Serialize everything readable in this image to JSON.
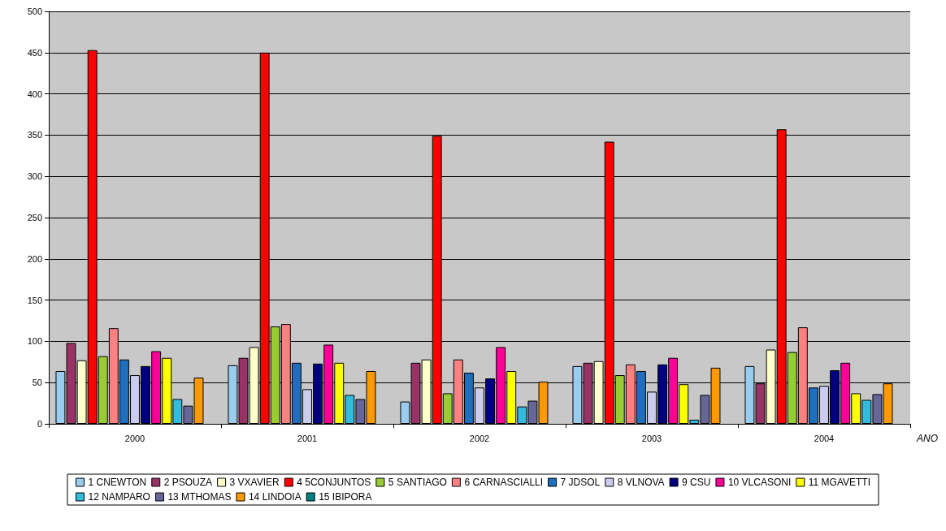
{
  "chart_data": {
    "type": "bar",
    "xlabel": "ANO",
    "categories": [
      "2000",
      "2001",
      "2002",
      "2003",
      "2004"
    ],
    "ylim": [
      0,
      500
    ],
    "yticks": [
      0,
      50,
      100,
      150,
      200,
      250,
      300,
      350,
      400,
      450,
      500
    ],
    "grid": "y",
    "legend": "bottom",
    "series": [
      {
        "name": "1 CNEWTON",
        "color": "#99ccee",
        "values": [
          64,
          71,
          27,
          70,
          70
        ]
      },
      {
        "name": "2 PSOUZA",
        "color": "#993366",
        "values": [
          98,
          80,
          74,
          74,
          49
        ]
      },
      {
        "name": "3 VXAVIER",
        "color": "#ffffcc",
        "values": [
          77,
          93,
          78,
          76,
          90
        ]
      },
      {
        "name": "4 5CONJUNTOS",
        "color": "#ff0000",
        "values": [
          453,
          450,
          349,
          342,
          357
        ]
      },
      {
        "name": "5 SANTIAGO",
        "color": "#99cc33",
        "values": [
          82,
          118,
          37,
          59,
          87
        ]
      },
      {
        "name": "6 CARNASCIALLI",
        "color": "#ff8080",
        "values": [
          116,
          121,
          78,
          72,
          117
        ]
      },
      {
        "name": "7 JDSOL",
        "color": "#1f6fbf",
        "values": [
          78,
          74,
          62,
          64,
          44
        ]
      },
      {
        "name": "8 VLNOVA",
        "color": "#ccccee",
        "values": [
          59,
          42,
          44,
          39,
          46
        ]
      },
      {
        "name": "9 CSU",
        "color": "#000080",
        "values": [
          70,
          73,
          55,
          72,
          65
        ]
      },
      {
        "name": "10 VLCASONI",
        "color": "#ff0099",
        "values": [
          88,
          96,
          93,
          80,
          74
        ]
      },
      {
        "name": "11 MGAVETTI",
        "color": "#ffff00",
        "values": [
          80,
          74,
          64,
          48,
          37
        ]
      },
      {
        "name": "12 NAMPARO",
        "color": "#33bbdd",
        "values": [
          30,
          35,
          21,
          5,
          29
        ]
      },
      {
        "name": "13 MTHOMAS",
        "color": "#666699",
        "values": [
          22,
          30,
          28,
          35,
          36
        ]
      },
      {
        "name": "14 LINDOIA",
        "color": "#ff9900",
        "values": [
          56,
          64,
          51,
          68,
          49
        ]
      },
      {
        "name": "15 IBIPORA",
        "color": "#008080",
        "values": [
          null,
          null,
          null,
          null,
          null
        ]
      }
    ]
  }
}
